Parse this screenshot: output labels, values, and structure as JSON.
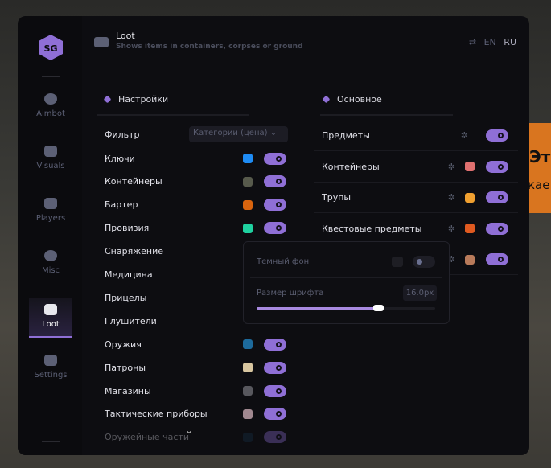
{
  "background": {
    "line1": "Эт",
    "line2": "кае"
  },
  "logo": "SG",
  "sidebar": {
    "items": [
      {
        "label": "Aimbot",
        "icon": "alien-icon"
      },
      {
        "label": "Visuals",
        "icon": "vr-headset-icon"
      },
      {
        "label": "Players",
        "icon": "users-icon"
      },
      {
        "label": "Misc",
        "icon": "more-icon"
      },
      {
        "label": "Loot",
        "icon": "briefcase-icon",
        "active": true
      },
      {
        "label": "Settings",
        "icon": "list-icon"
      }
    ]
  },
  "header": {
    "title": "Loot",
    "subtitle": "Shows items in containers, corpses or ground",
    "languages": [
      "EN",
      "RU"
    ],
    "active_language": "RU"
  },
  "settings": {
    "title": "Настройки",
    "filter_label": "Фильтр",
    "filter_value": "Категории (цена)",
    "items": [
      {
        "label": "Ключи",
        "color": "#1e8cf5",
        "on": true
      },
      {
        "label": "Контейнеры",
        "color": "#575a4c",
        "on": true
      },
      {
        "label": "Бартер",
        "color": "#d9640e",
        "on": true
      },
      {
        "label": "Провизия",
        "color": "#1fd1a0",
        "on": true
      },
      {
        "label": "Снаряжение"
      },
      {
        "label": "Медицина"
      },
      {
        "label": "Прицелы"
      },
      {
        "label": "Глушители"
      },
      {
        "label": "Оружия",
        "color": "#1d6a9c",
        "on": true
      },
      {
        "label": "Патроны",
        "color": "#d8c6a0",
        "on": true
      },
      {
        "label": "Магазины",
        "color": "#58585e",
        "on": true
      },
      {
        "label": "Тактические приборы",
        "color": "#a08890",
        "on": true
      },
      {
        "label": "Оружейные части",
        "color": "#16324a",
        "on": true
      }
    ]
  },
  "main": {
    "title": "Основное",
    "items": [
      {
        "label": "Предметы",
        "on": true
      },
      {
        "label": "Контейнеры",
        "color": "#e07070",
        "on": true
      },
      {
        "label": "Трупы",
        "color": "#f0a030",
        "on": true
      },
      {
        "label": "Квестовые предметы",
        "color": "#e05a20",
        "on": true
      },
      {
        "label": "",
        "color": "#b87a5a",
        "on": true
      }
    ]
  },
  "popup": {
    "dark_bg_label": "Темный фон",
    "dark_bg_on": false,
    "font_size_label": "Размер шрифта",
    "font_size_value": "16.0px",
    "font_size_fraction": 0.68
  },
  "colors": {
    "accent": "#8f6fd6"
  }
}
